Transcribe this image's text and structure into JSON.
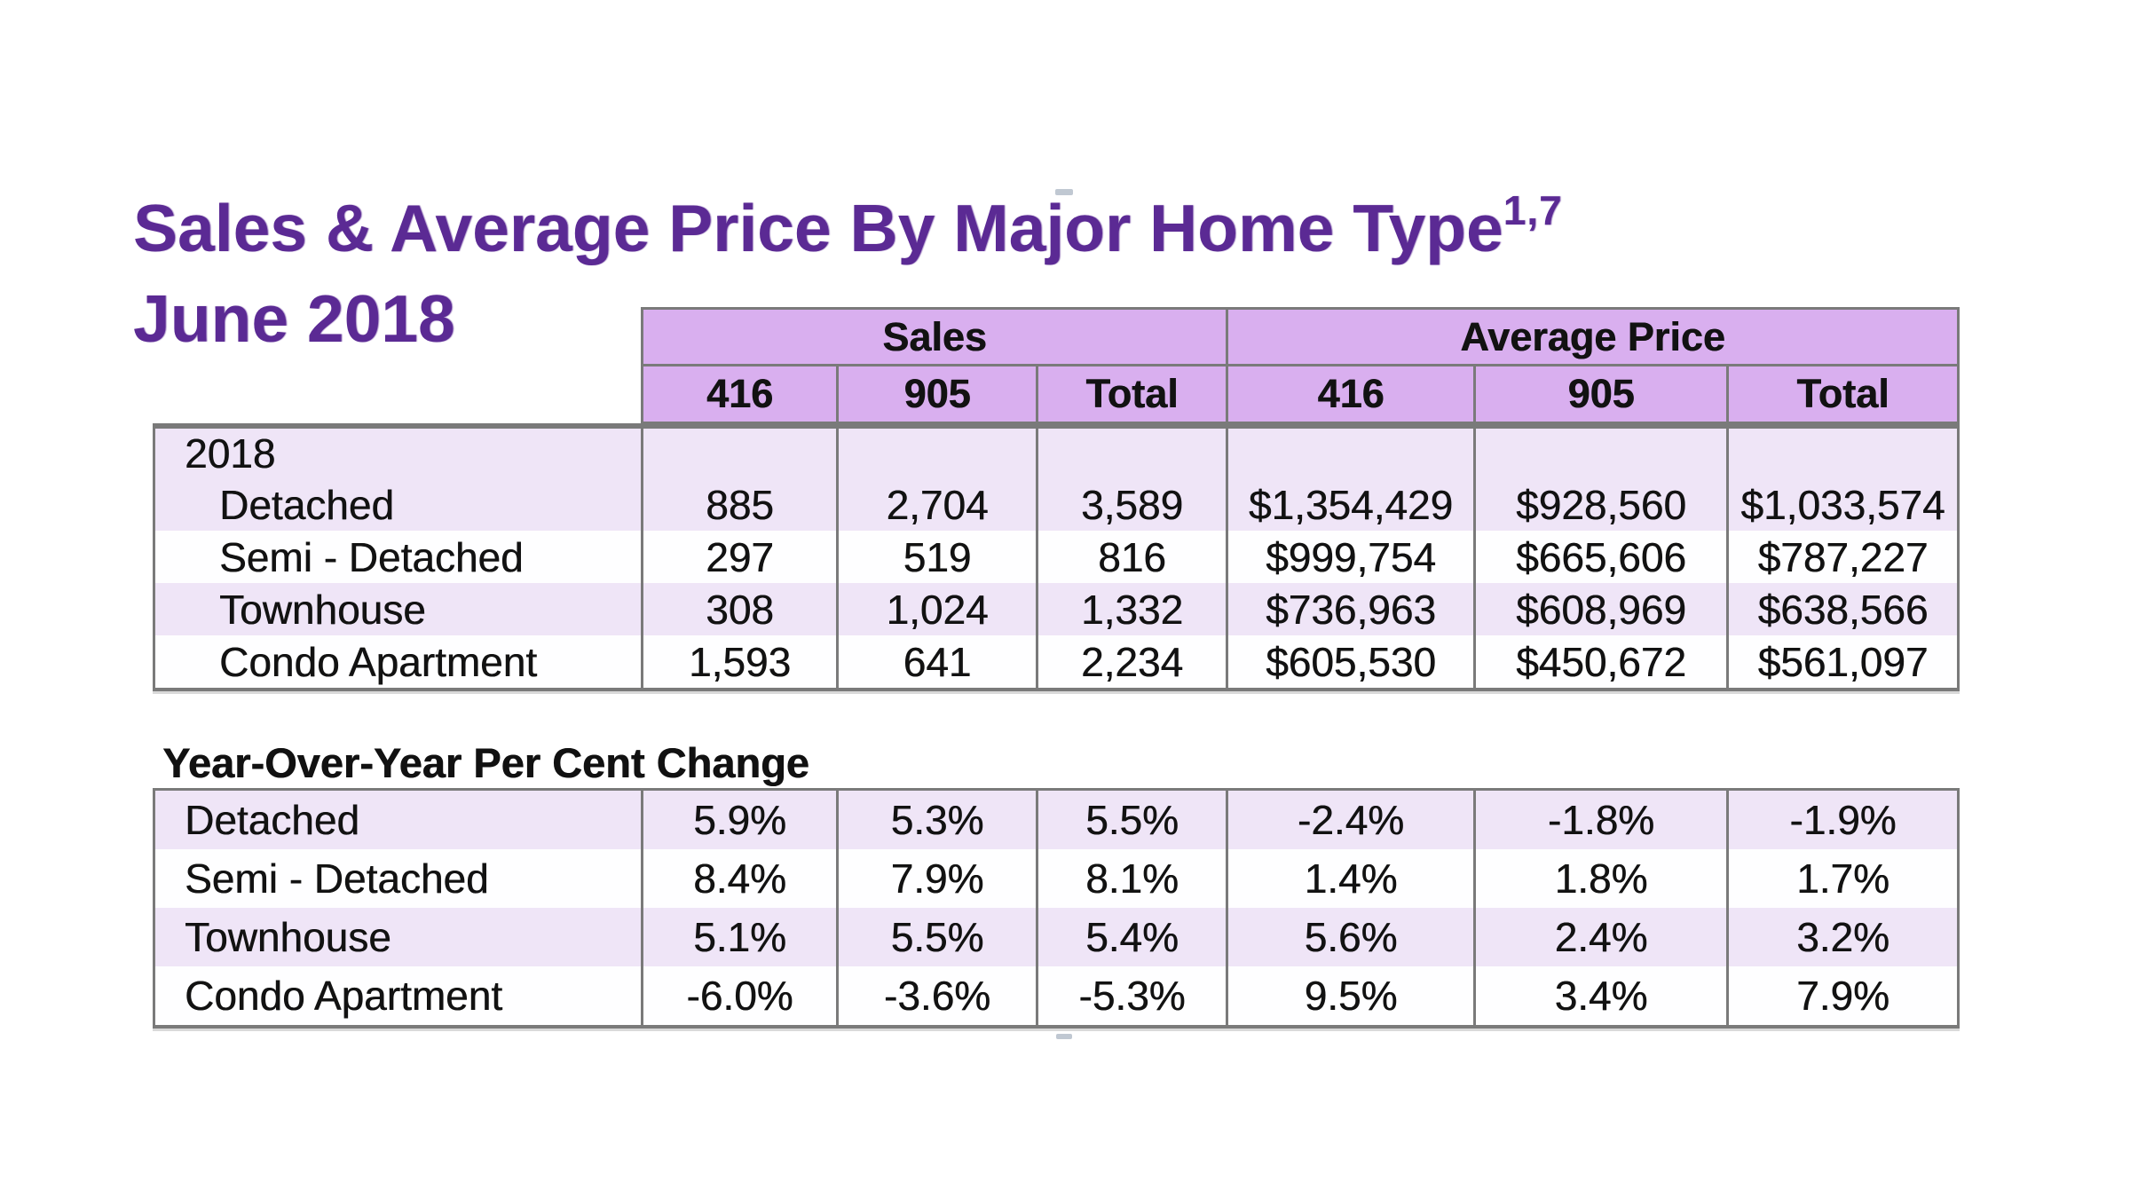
{
  "header": {
    "title": "Sales & Average Price By Major Home Type",
    "title_superscript": "1,7",
    "subtitle": "June 2018"
  },
  "sales_price_table": {
    "group_headers": [
      {
        "label": "Sales"
      },
      {
        "label": "Average Price"
      }
    ],
    "column_headers": [
      "416",
      "905",
      "Total",
      "416",
      "905",
      "Total"
    ],
    "year_row_label": "2018",
    "rows": [
      {
        "label": "Detached",
        "values": [
          "885",
          "2,704",
          "3,589",
          "$1,354,429",
          "$928,560",
          "$1,033,574"
        ]
      },
      {
        "label": "Semi - Detached",
        "values": [
          "297",
          "519",
          "816",
          "$999,754",
          "$665,606",
          "$787,227"
        ]
      },
      {
        "label": "Townhouse",
        "values": [
          "308",
          "1,024",
          "1,332",
          "$736,963",
          "$608,969",
          "$638,566"
        ]
      },
      {
        "label": "Condo Apartment",
        "values": [
          "1,593",
          "641",
          "2,234",
          "$605,530",
          "$450,672",
          "$561,097"
        ]
      }
    ]
  },
  "yoy_table": {
    "title": "Year-Over-Year Per Cent Change",
    "rows": [
      {
        "label": "Detached",
        "values": [
          "5.9%",
          "5.3%",
          "5.5%",
          "-2.4%",
          "-1.8%",
          "-1.9%"
        ]
      },
      {
        "label": "Semi - Detached",
        "values": [
          "8.4%",
          "7.9%",
          "8.1%",
          "1.4%",
          "1.8%",
          "1.7%"
        ]
      },
      {
        "label": "Townhouse",
        "values": [
          "5.1%",
          "5.5%",
          "5.4%",
          "5.6%",
          "2.4%",
          "3.2%"
        ]
      },
      {
        "label": "Condo Apartment",
        "values": [
          "-6.0%",
          "-3.6%",
          "-5.3%",
          "9.5%",
          "3.4%",
          "7.9%"
        ]
      }
    ]
  },
  "colors": {
    "title_purple": "#5B2A94",
    "header_lilac": "#D9AFEF",
    "row_lavender": "#EFE5F7",
    "row_white": "#FEFEFF",
    "border_gray": "#7A7A7A",
    "text_black": "#121212"
  }
}
